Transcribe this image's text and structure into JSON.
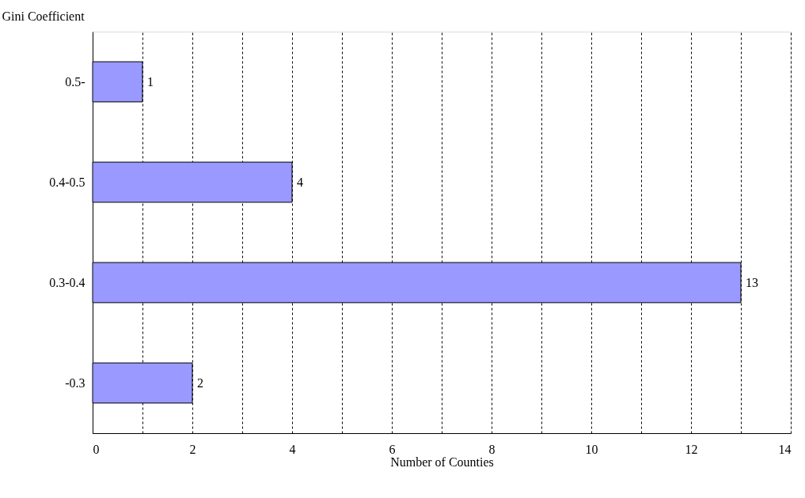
{
  "chart_data": {
    "type": "bar",
    "orientation": "horizontal",
    "xlabel": "Number of Counties",
    "ylabel": "Gini Coefficient",
    "categories": [
      "0.5-",
      "0.4-0.5",
      "0.3-0.4",
      "-0.3"
    ],
    "values": [
      1,
      4,
      13,
      2
    ],
    "color": "#9999ff",
    "xlim": [
      0,
      14
    ],
    "xticks": [
      0,
      {
        "value": 1,
        "label": null
      },
      2,
      {
        "value": 3,
        "label": null
      },
      4,
      {
        "value": 5,
        "label": null
      },
      6,
      {
        "value": 7,
        "label": null
      },
      8,
      {
        "value": 9,
        "label": null
      },
      10,
      {
        "value": 11,
        "label": null
      },
      12,
      {
        "value": 13,
        "label": null
      },
      14
    ],
    "grid": "x",
    "data_labels": true
  }
}
